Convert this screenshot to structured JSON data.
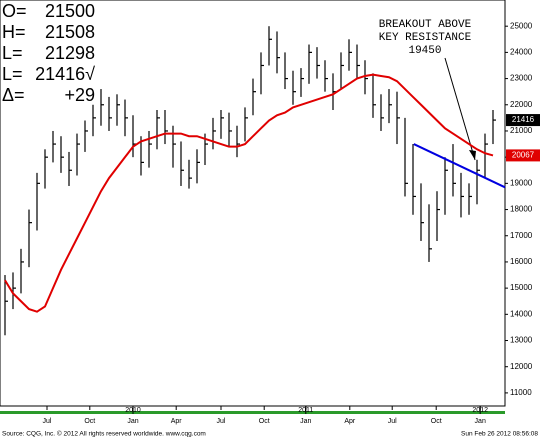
{
  "chart_data": {
    "type": "ohlc",
    "header": [
      {
        "label": "O=",
        "value": "21500"
      },
      {
        "label": "H=",
        "value": "21508"
      },
      {
        "label": "L=",
        "value": "21298"
      },
      {
        "label": "L=",
        "value": "21416√"
      },
      {
        "label": "Δ=",
        "value": "+29"
      }
    ],
    "annotation": [
      "BREAKOUT ABOVE",
      "KEY RESISTANCE",
      "19450"
    ],
    "footer": {
      "source": "Source: CQG, Inc. © 2012 All rights reserved worldwide. www.cqg.com",
      "timestamp": "Sun Feb 26 2012 08:56:08"
    },
    "xlim": [
      -0.625,
      62.5
    ],
    "xticks": [
      {
        "value": 5.25,
        "label": "Jul"
      },
      {
        "value": 10.6,
        "label": "Oct"
      },
      {
        "value": 16,
        "label": "Jan"
      },
      {
        "value": 21.4,
        "label": "Apr"
      },
      {
        "value": 27,
        "label": "Jul"
      },
      {
        "value": 32.4,
        "label": "Oct"
      },
      {
        "value": 37.6,
        "label": "Jan"
      },
      {
        "value": 43.1,
        "label": "Apr"
      },
      {
        "value": 48.4,
        "label": "Jul"
      },
      {
        "value": 53.9,
        "label": "Oct"
      },
      {
        "value": 59.4,
        "label": "Jan"
      }
    ],
    "years": [
      {
        "value": 16,
        "label": "2010"
      },
      {
        "value": 37.6,
        "label": "2011"
      },
      {
        "value": 59.4,
        "label": "2012"
      }
    ],
    "ylim": [
      10500,
      26000
    ],
    "yticks": [
      11000,
      12000,
      13000,
      14000,
      15000,
      16000,
      17000,
      18000,
      19000,
      20000,
      21000,
      22000,
      23000,
      24000,
      25000
    ],
    "bar_color": "#000000",
    "high": [
      15500,
      15600,
      16500,
      18000,
      19400,
      20300,
      21000,
      20800,
      20200,
      20900,
      21400,
      22000,
      22600,
      22300,
      22400,
      22200,
      21600,
      20800,
      21000,
      21800,
      21800,
      21200,
      20600,
      19900,
      20300,
      20900,
      21500,
      21800,
      21700,
      21200,
      21900,
      23000,
      24000,
      25000,
      24800,
      24000,
      23300,
      23400,
      24300,
      24200,
      23700,
      23200,
      24000,
      24500,
      24300,
      23700,
      23200,
      22400,
      22600,
      22500,
      21500,
      20500,
      19000,
      18200,
      18700,
      20000,
      20500,
      19400,
      19000,
      19900,
      20900,
      21800
    ],
    "low": [
      13200,
      14200,
      14800,
      15800,
      17200,
      18800,
      19800,
      19400,
      18900,
      19300,
      20200,
      20800,
      21200,
      21000,
      21200,
      20800,
      20000,
      19300,
      19600,
      20300,
      20500,
      19600,
      18900,
      18800,
      19000,
      19700,
      20300,
      20700,
      20400,
      20000,
      20600,
      21600,
      22400,
      23500,
      23200,
      22600,
      22000,
      22300,
      22800,
      23000,
      22500,
      21800,
      22600,
      23300,
      23000,
      22400,
      21500,
      21000,
      21300,
      20500,
      18500,
      17800,
      16800,
      16000,
      16800,
      17800,
      18500,
      17700,
      17800,
      18200,
      19200,
      20500
    ],
    "close": [
      14500,
      15000,
      16000,
      17500,
      19000,
      20000,
      20500,
      20000,
      19500,
      20500,
      21000,
      21500,
      22000,
      21500,
      22000,
      21500,
      20500,
      19800,
      20500,
      21500,
      21000,
      20500,
      19500,
      19200,
      19800,
      20500,
      21000,
      21500,
      21000,
      20500,
      21500,
      22500,
      23500,
      24500,
      23800,
      23000,
      22500,
      23000,
      24000,
      23500,
      23000,
      22500,
      23500,
      24000,
      23500,
      23000,
      22000,
      21500,
      22000,
      21500,
      19000,
      18500,
      17500,
      16500,
      18000,
      19500,
      19000,
      18500,
      18500,
      19500,
      20500,
      21416
    ],
    "moving_average": {
      "color": "#e00000",
      "values": [
        15300,
        14800,
        14500,
        14200,
        14100,
        14300,
        15000,
        15700,
        16300,
        16900,
        17500,
        18100,
        18700,
        19200,
        19600,
        20000,
        20400,
        20600,
        20700,
        20800,
        20900,
        20900,
        20900,
        20800,
        20800,
        20700,
        20600,
        20500,
        20400,
        20400,
        20500,
        20800,
        21100,
        21400,
        21600,
        21700,
        21900,
        22000,
        22100,
        22200,
        22300,
        22400,
        22600,
        22800,
        23000,
        23100,
        23150,
        23100,
        23050,
        22900,
        22600,
        22300,
        22000,
        21700,
        21400,
        21100,
        20900,
        20700,
        20500,
        20300,
        20150,
        20067
      ]
    },
    "trendline": {
      "color": "#0000e0",
      "x": [
        51.1,
        62.5
      ],
      "values": [
        20500,
        18850
      ]
    },
    "last_price": 21416,
    "last_average": 20067
  }
}
